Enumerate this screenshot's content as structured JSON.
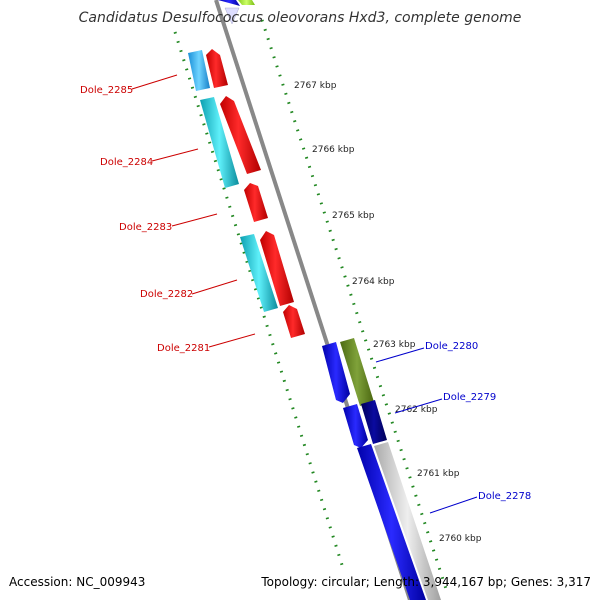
{
  "title": "Candidatus Desulfococcus oleovorans Hxd3, complete genome",
  "footer": {
    "accession": "Accession: NC_009943",
    "stats": "Topology: circular; Length: 3,944,167 bp; Genes: 3,317"
  },
  "ticks": [
    {
      "label": "2767 kbp"
    },
    {
      "label": "2766 kbp"
    },
    {
      "label": "2765 kbp"
    },
    {
      "label": "2764 kbp"
    },
    {
      "label": "2763 kbp"
    },
    {
      "label": "2762 kbp"
    },
    {
      "label": "2761 kbp"
    },
    {
      "label": "2760 kbp"
    }
  ],
  "genes_reverse": [
    {
      "label": "Dole_2285"
    },
    {
      "label": "Dole_2284"
    },
    {
      "label": "Dole_2283"
    },
    {
      "label": "Dole_2282"
    },
    {
      "label": "Dole_2281"
    }
  ],
  "genes_forward": [
    {
      "label": "Dole_2280"
    },
    {
      "label": "Dole_2279"
    },
    {
      "label": "Dole_2278"
    }
  ],
  "colors": {
    "reverse_label": "#cc0000",
    "forward_label": "#0000cc",
    "cds": "#ee0000",
    "gene_cyan": "#22ddee",
    "gene_forward": "#0000ee",
    "gene_olive": "#6b8e23",
    "gene_navy": "#000088",
    "tick_green": "#228822",
    "backbone": "#888888"
  }
}
